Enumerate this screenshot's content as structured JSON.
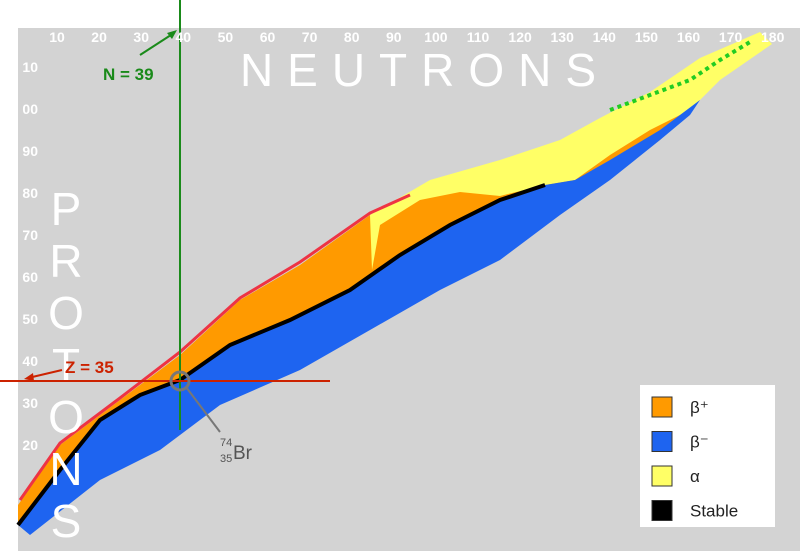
{
  "header": {
    "x_title": "NEUTRONS",
    "y_title": "PROTONS"
  },
  "top_ticks": [
    "10",
    "20",
    "30",
    "40",
    "50",
    "60",
    "70",
    "80",
    "90",
    "100",
    "110",
    "120",
    "130",
    "140",
    "150",
    "160",
    "170",
    "180"
  ],
  "left_ticks": [
    "10",
    "00",
    "90",
    "80",
    "70",
    "60",
    "50",
    "40",
    "30",
    "20"
  ],
  "annotations": {
    "neutron_line": "N = 39",
    "proton_line": "Z = 35"
  },
  "nuclide": {
    "mass": "74",
    "atomic": "35",
    "symbol": "Br"
  },
  "legend": [
    "β⁺",
    "β⁻",
    "α",
    "Stable"
  ]
}
